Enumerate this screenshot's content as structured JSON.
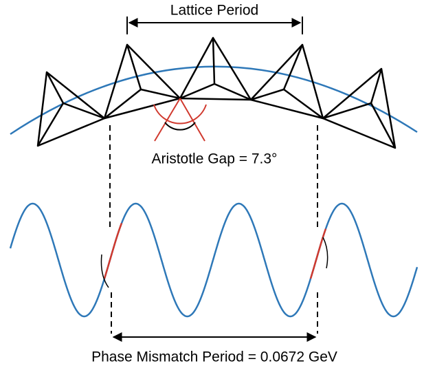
{
  "labels": {
    "top": "Lattice Period",
    "middle": "Aristotle Gap = 7.3°",
    "bottom": "Phase Mismatch Period = 0.0672 GeV"
  }
}
